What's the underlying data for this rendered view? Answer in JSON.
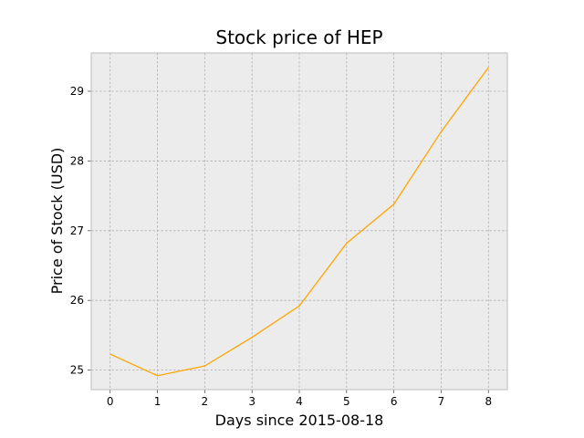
{
  "chart_data": {
    "type": "line",
    "title": "Stock price of HEP",
    "xlabel": "Days since 2015-08-18",
    "ylabel": "Price of Stock (USD)",
    "x": [
      0,
      1,
      2,
      3,
      4,
      5,
      6,
      7,
      8
    ],
    "series": [
      {
        "values": [
          25.23,
          24.92,
          25.06,
          25.47,
          25.92,
          26.82,
          27.38,
          28.42,
          29.34
        ]
      }
    ],
    "xticks": [
      "0",
      "1",
      "2",
      "3",
      "4",
      "5",
      "6",
      "7",
      "8"
    ],
    "yticks": [
      "25",
      "26",
      "27",
      "28",
      "29"
    ],
    "xlim": [
      -0.4,
      8.4
    ],
    "ylim": [
      24.72,
      29.55
    ],
    "grid": true,
    "colors": {
      "line": "#ffa500",
      "plot_background": "#ececec",
      "grid": "#b0b0b0",
      "frame": "#bcbcbc"
    }
  }
}
